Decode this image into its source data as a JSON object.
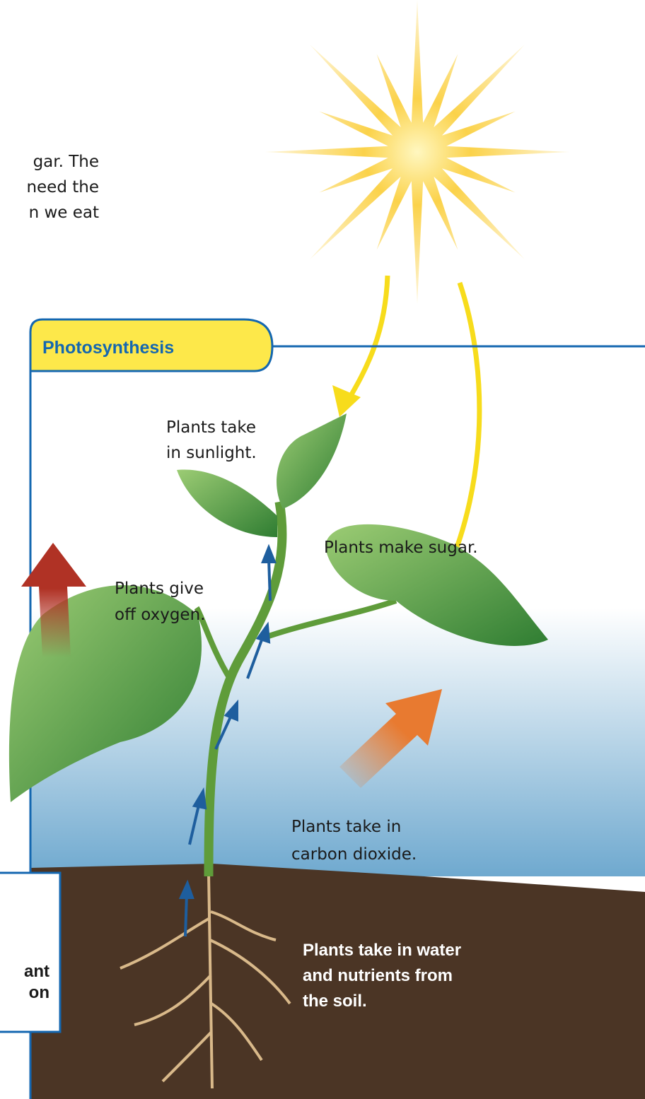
{
  "intro_text": {
    "lines": [
      "gar. The",
      "need the",
      "n we eat"
    ]
  },
  "section": {
    "title": "Photosynthesis"
  },
  "labels": {
    "sunlight": {
      "lines": [
        "Plants take",
        "in sunlight."
      ]
    },
    "sugar": {
      "lines": [
        "Plants make sugar."
      ]
    },
    "oxygen": {
      "lines": [
        "Plants give",
        "off oxygen."
      ]
    },
    "carbon_dioxide": {
      "lines": [
        "Plants take in",
        "carbon dioxide."
      ]
    },
    "water": {
      "lines": [
        "Plants take in water",
        "and nutrients from",
        "the soil."
      ]
    }
  },
  "side_box": {
    "lines": [
      "ant",
      "on"
    ]
  }
}
